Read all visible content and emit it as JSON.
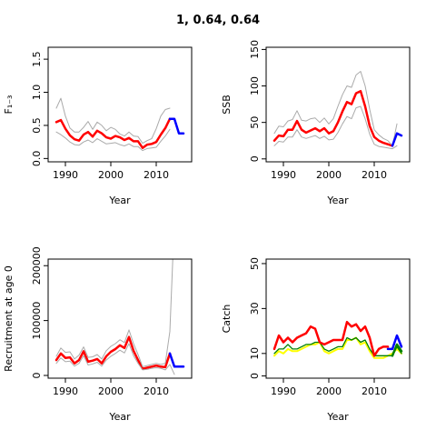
{
  "title": "1, 0.64, 0.64",
  "chart_data": [
    {
      "type": "line",
      "ylabel": "F₁₋₃",
      "xlabel": "Year",
      "xlim": [
        1987,
        2017
      ],
      "ylim": [
        -0.05,
        1.68
      ],
      "x_ticks": [
        1990,
        2000,
        2010
      ],
      "y_ticks": [
        "0.0",
        "0.5",
        "1.0",
        "1.5"
      ],
      "y_tick_values": [
        0,
        0.5,
        1.0,
        1.5
      ],
      "series": [
        {
          "color": "#ff0000",
          "width": 2.5,
          "x": [
            1988,
            1989,
            1990,
            1991,
            1992,
            1993,
            1994,
            1995,
            1996,
            1997,
            1998,
            1999,
            2000,
            2001,
            2002,
            2003,
            2004,
            2005,
            2006,
            2007,
            2008,
            2009,
            2010,
            2011,
            2012,
            2013
          ],
          "values": [
            0.55,
            0.58,
            0.45,
            0.35,
            0.29,
            0.27,
            0.36,
            0.4,
            0.33,
            0.42,
            0.38,
            0.32,
            0.3,
            0.34,
            0.32,
            0.28,
            0.31,
            0.26,
            0.26,
            0.16,
            0.21,
            0.22,
            0.25,
            0.36,
            0.46,
            0.6
          ]
        },
        {
          "color": "#aaaaaa",
          "width": 1,
          "x": [
            1988,
            1989,
            1990,
            1991,
            1992,
            1993,
            1994,
            1995,
            1996,
            1997,
            1998,
            1999,
            2000,
            2001,
            2002,
            2003,
            2004,
            2005,
            2006,
            2007,
            2008,
            2009,
            2010,
            2011,
            2012,
            2013
          ],
          "values": [
            0.76,
            0.91,
            0.64,
            0.46,
            0.4,
            0.4,
            0.47,
            0.56,
            0.44,
            0.55,
            0.5,
            0.42,
            0.47,
            0.44,
            0.37,
            0.34,
            0.4,
            0.34,
            0.33,
            0.23,
            0.27,
            0.3,
            0.45,
            0.64,
            0.74,
            0.76
          ]
        },
        {
          "color": "#aaaaaa",
          "width": 1,
          "x": [
            1988,
            1989,
            1990,
            1991,
            1992,
            1993,
            1994,
            1995,
            1996,
            1997,
            1998,
            1999,
            2000,
            2001,
            2002,
            2003,
            2004,
            2005,
            2006,
            2007,
            2008,
            2009,
            2010,
            2011,
            2012,
            2013
          ],
          "values": [
            0.4,
            0.36,
            0.31,
            0.25,
            0.21,
            0.2,
            0.25,
            0.28,
            0.24,
            0.3,
            0.26,
            0.22,
            0.23,
            0.24,
            0.21,
            0.19,
            0.22,
            0.18,
            0.18,
            0.12,
            0.15,
            0.16,
            0.17,
            0.26,
            0.34,
            0.44
          ]
        },
        {
          "color": "#0000ff",
          "width": 2.5,
          "x": [
            2013,
            2014,
            2015,
            2016
          ],
          "values": [
            0.6,
            0.6,
            0.38,
            0.38
          ]
        }
      ]
    },
    {
      "type": "line",
      "ylabel": "SSB",
      "xlabel": "Year",
      "xlim": [
        1987,
        2017
      ],
      "ylim": [
        -4,
        153
      ],
      "x_ticks": [
        1990,
        2000,
        2010
      ],
      "y_ticks": [
        "0",
        "50",
        "100",
        "150"
      ],
      "y_tick_values": [
        0,
        50,
        100,
        150
      ],
      "series": [
        {
          "color": "#ff0000",
          "width": 2.5,
          "x": [
            1988,
            1989,
            1990,
            1991,
            1992,
            1993,
            1994,
            1995,
            1996,
            1997,
            1998,
            1999,
            2000,
            2001,
            2002,
            2003,
            2004,
            2005,
            2006,
            2007,
            2008,
            2009,
            2010,
            2011,
            2012,
            2013,
            2014
          ],
          "values": [
            25,
            32,
            31,
            40,
            40,
            52,
            40,
            36,
            39,
            42,
            38,
            42,
            35,
            38,
            50,
            65,
            78,
            75,
            90,
            93,
            72,
            45,
            30,
            25,
            22,
            20,
            18
          ]
        },
        {
          "color": "#aaaaaa",
          "width": 1,
          "x": [
            1988,
            1989,
            1990,
            1991,
            1992,
            1993,
            1994,
            1995,
            1996,
            1997,
            1998,
            1999,
            2000,
            2001,
            2002,
            2003,
            2004,
            2005,
            2006,
            2007,
            2008,
            2009,
            2010,
            2011,
            2012,
            2013,
            2014,
            2015
          ],
          "values": [
            35,
            45,
            44,
            52,
            54,
            66,
            53,
            52,
            55,
            56,
            50,
            56,
            48,
            55,
            72,
            88,
            100,
            98,
            115,
            120,
            100,
            68,
            40,
            33,
            28,
            25,
            18,
            48
          ]
        },
        {
          "color": "#aaaaaa",
          "width": 1,
          "x": [
            1988,
            1989,
            1990,
            1991,
            1992,
            1993,
            1994,
            1995,
            1996,
            1997,
            1998,
            1999,
            2000,
            2001,
            2002,
            2003,
            2004,
            2005,
            2006,
            2007,
            2008,
            2009,
            2010,
            2011,
            2012,
            2013,
            2014,
            2015
          ],
          "values": [
            18,
            24,
            23,
            30,
            30,
            40,
            30,
            28,
            30,
            32,
            28,
            31,
            26,
            27,
            36,
            48,
            58,
            55,
            70,
            72,
            55,
            34,
            20,
            17,
            16,
            15,
            14,
            18
          ]
        },
        {
          "color": "#0000ff",
          "width": 2.5,
          "x": [
            2014,
            2015,
            2016
          ],
          "values": [
            18,
            35,
            32
          ]
        }
      ]
    },
    {
      "type": "line",
      "ylabel": "Recruitment at age 0",
      "xlabel": "Year",
      "xlim": [
        1987,
        2017
      ],
      "ylim": [
        -5000,
        212000
      ],
      "x_ticks": [
        1990,
        2000,
        2010
      ],
      "y_ticks": [
        "0",
        "100000",
        "200000"
      ],
      "y_tick_values": [
        0,
        100000,
        200000
      ],
      "series": [
        {
          "color": "#ff0000",
          "width": 2.5,
          "x": [
            1988,
            1989,
            1990,
            1991,
            1992,
            1993,
            1994,
            1995,
            1996,
            1997,
            1998,
            1999,
            2000,
            2001,
            2002,
            2003,
            2004,
            2005,
            2006,
            2007,
            2008,
            2009,
            2010,
            2011,
            2012,
            2013
          ],
          "values": [
            28000,
            40000,
            32000,
            33000,
            22000,
            28000,
            44000,
            25000,
            27000,
            30000,
            22000,
            35000,
            43000,
            48000,
            55000,
            50000,
            70000,
            45000,
            28000,
            12000,
            14000,
            16000,
            18000,
            16000,
            15000,
            40000
          ]
        },
        {
          "color": "#aaaaaa",
          "width": 1,
          "x": [
            1988,
            1989,
            1990,
            1991,
            1992,
            1993,
            1994,
            1995,
            1996,
            1997,
            1998,
            1999,
            2000,
            2001,
            2002,
            2003,
            2004,
            2005,
            2006,
            2007,
            2008,
            2009,
            2010,
            2011,
            2012,
            2013,
            2014
          ],
          "values": [
            35000,
            50000,
            42000,
            43000,
            30000,
            37000,
            52000,
            33000,
            34000,
            38000,
            30000,
            45000,
            53000,
            58000,
            65000,
            60000,
            83000,
            58000,
            38000,
            16000,
            18000,
            20000,
            22000,
            20000,
            22000,
            80000,
            285000
          ]
        },
        {
          "color": "#aaaaaa",
          "width": 1,
          "x": [
            1988,
            1989,
            1990,
            1991,
            1992,
            1993,
            1994,
            1995,
            1996,
            1997,
            1998,
            1999,
            2000,
            2001,
            2002,
            2003,
            2004,
            2005,
            2006,
            2007,
            2008,
            2009,
            2010,
            2011,
            2012,
            2013,
            2014
          ],
          "values": [
            22000,
            32000,
            25000,
            26000,
            17000,
            22000,
            36000,
            19000,
            21000,
            24000,
            17000,
            28000,
            35000,
            40000,
            46000,
            41000,
            58000,
            36000,
            22000,
            10000,
            11000,
            13000,
            14000,
            13000,
            10000,
            20000,
            2000
          ]
        },
        {
          "color": "#0000ff",
          "width": 2.5,
          "x": [
            2013,
            2014,
            2015,
            2016
          ],
          "values": [
            40000,
            16000,
            16000,
            16000
          ]
        }
      ]
    },
    {
      "type": "line",
      "ylabel": "Catch",
      "xlabel": "Year",
      "xlim": [
        1987,
        2017
      ],
      "ylim": [
        -1,
        52
      ],
      "x_ticks": [
        1990,
        2000,
        2010
      ],
      "y_ticks": [
        "0",
        "10",
        "30",
        "50"
      ],
      "y_tick_values": [
        0,
        10,
        30,
        50
      ],
      "series": [
        {
          "color": "#ffff00",
          "width": 2,
          "x": [
            1988,
            1989,
            1990,
            1991,
            1992,
            1993,
            1994,
            1995,
            1996,
            1997,
            1998,
            1999,
            2000,
            2001,
            2002,
            2003,
            2004,
            2005,
            2006,
            2007,
            2008,
            2009,
            2010,
            2011,
            2012,
            2013,
            2014,
            2015,
            2016
          ],
          "values": [
            9,
            11,
            10,
            12,
            11,
            11,
            12,
            13,
            14,
            14,
            15,
            11,
            10,
            11,
            12,
            12,
            16,
            16,
            17,
            14,
            15,
            11,
            8,
            8,
            8,
            9,
            10,
            12,
            10
          ]
        },
        {
          "color": "#008000",
          "width": 1.3,
          "x": [
            1988,
            1989,
            1990,
            1991,
            1992,
            1993,
            1994,
            1995,
            1996,
            1997,
            1998,
            1999,
            2000,
            2001,
            2002,
            2003,
            2004,
            2005,
            2006,
            2007,
            2008,
            2009,
            2010,
            2011,
            2012,
            2013,
            2014,
            2015,
            2016
          ],
          "values": [
            10,
            12,
            12,
            14,
            12,
            12,
            13,
            14,
            14,
            15,
            15,
            12,
            11,
            12,
            13,
            13,
            17,
            16,
            17,
            15,
            16,
            12,
            9,
            9,
            9,
            9,
            9,
            13,
            10
          ]
        },
        {
          "color": "#ff0000",
          "width": 2.5,
          "x": [
            1988,
            1989,
            1990,
            1991,
            1992,
            1993,
            1994,
            1995,
            1996,
            1997,
            1998,
            1999,
            2000,
            2001,
            2002,
            2003,
            2004,
            2005,
            2006,
            2007,
            2008,
            2009,
            2010,
            2011,
            2012,
            2013
          ],
          "values": [
            12,
            18,
            15,
            17,
            15,
            17,
            18,
            19,
            22,
            21,
            15,
            14,
            15,
            16,
            16,
            16,
            24,
            22,
            23,
            20,
            22,
            17,
            9,
            12,
            13,
            13
          ]
        },
        {
          "color": "#0000ff",
          "width": 2.5,
          "x": [
            2013,
            2014,
            2015,
            2016
          ],
          "values": [
            12,
            12,
            18,
            13
          ]
        },
        {
          "color": "#008000",
          "width": 2.5,
          "x": [
            2014,
            2015,
            2016
          ],
          "values": [
            9,
            14,
            11
          ]
        }
      ]
    }
  ]
}
